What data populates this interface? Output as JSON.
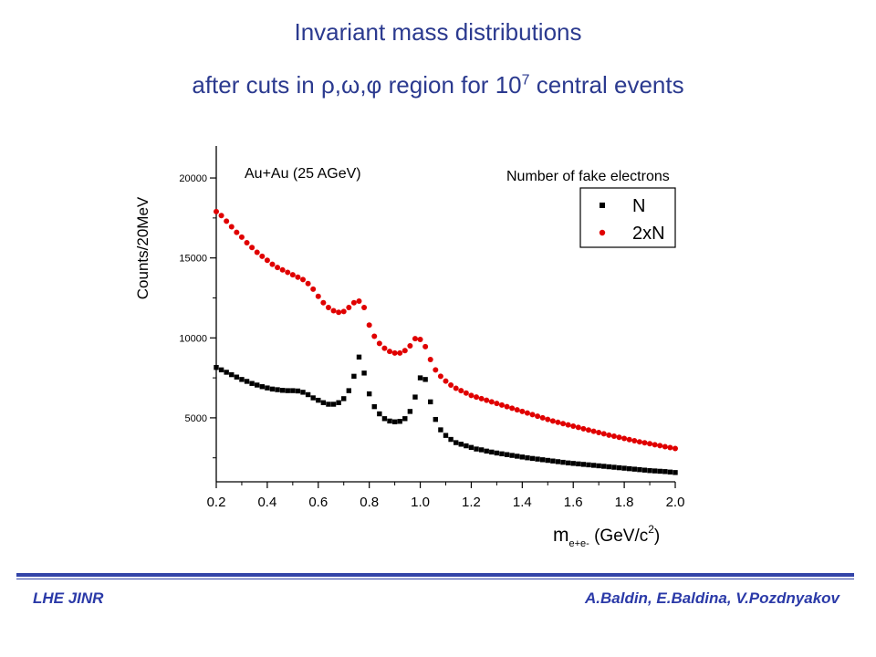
{
  "title": {
    "line1": "Invariant mass distributions",
    "line2_prefix": "after cuts in ",
    "line2_greek": "ρ,ω,φ",
    "line2_mid": " region for 10",
    "line2_sup": "7",
    "line2_suffix": " central events"
  },
  "footer": {
    "left": "LHE JINR",
    "right": "A.Baldin, E.Baldina, V.Pozdnyakov"
  },
  "colors": {
    "title": "#2b3a8f",
    "footer": "#2b3aa8",
    "series_N": "#000000",
    "series_2xN": "#e00000"
  },
  "chart_data": {
    "type": "scatter",
    "annotation": "Au+Au (25 AGeV)",
    "legend_title": "Number of fake electrons",
    "legend_placement": "top-right",
    "ylabel": "Counts/20MeV",
    "xlabel_main": "m",
    "xlabel_sub": "e+e-",
    "xlabel_unit_prefix": " (GeV/c",
    "xlabel_unit_sup": "2",
    "xlabel_unit_suffix": ")",
    "xlim": [
      0.2,
      2.0
    ],
    "ylim": [
      1000,
      22000
    ],
    "x_ticks": [
      0.2,
      0.4,
      0.6,
      0.8,
      1.0,
      1.2,
      1.4,
      1.6,
      1.8,
      2.0
    ],
    "x_tick_labels": [
      "0.2",
      "0.4",
      "0.6",
      "0.8",
      "1.0",
      "1.2",
      "1.4",
      "1.6",
      "1.8",
      "2.0"
    ],
    "y_ticks": [
      5000,
      10000,
      15000,
      20000
    ],
    "y_tick_labels": [
      "5000",
      "10000",
      "15000",
      "20000"
    ],
    "grid": false,
    "series": [
      {
        "name": "N",
        "marker": "square",
        "x": [
          0.2,
          0.22,
          0.24,
          0.26,
          0.28,
          0.3,
          0.32,
          0.34,
          0.36,
          0.38,
          0.4,
          0.42,
          0.44,
          0.46,
          0.48,
          0.5,
          0.52,
          0.54,
          0.56,
          0.58,
          0.6,
          0.62,
          0.64,
          0.66,
          0.68,
          0.7,
          0.72,
          0.74,
          0.76,
          0.78,
          0.8,
          0.82,
          0.84,
          0.86,
          0.88,
          0.9,
          0.92,
          0.94,
          0.96,
          0.98,
          1.0,
          1.02,
          1.04,
          1.06,
          1.08,
          1.1,
          1.12,
          1.14,
          1.16,
          1.18,
          1.2,
          1.22,
          1.24,
          1.26,
          1.28,
          1.3,
          1.32,
          1.34,
          1.36,
          1.38,
          1.4,
          1.42,
          1.44,
          1.46,
          1.48,
          1.5,
          1.52,
          1.54,
          1.56,
          1.58,
          1.6,
          1.62,
          1.64,
          1.66,
          1.68,
          1.7,
          1.72,
          1.74,
          1.76,
          1.78,
          1.8,
          1.82,
          1.84,
          1.86,
          1.88,
          1.9,
          1.92,
          1.94,
          1.96,
          1.98,
          2.0
        ],
        "y": [
          8150,
          8000,
          7850,
          7700,
          7550,
          7400,
          7280,
          7150,
          7050,
          6950,
          6870,
          6800,
          6760,
          6720,
          6700,
          6700,
          6680,
          6600,
          6450,
          6250,
          6100,
          5950,
          5850,
          5850,
          5950,
          6200,
          6700,
          7600,
          8800,
          7800,
          6500,
          5700,
          5250,
          4950,
          4800,
          4750,
          4780,
          4950,
          5400,
          6300,
          7500,
          7400,
          6000,
          4900,
          4250,
          3900,
          3650,
          3450,
          3350,
          3250,
          3150,
          3050,
          3000,
          2920,
          2860,
          2800,
          2750,
          2700,
          2650,
          2600,
          2550,
          2500,
          2460,
          2420,
          2380,
          2340,
          2300,
          2260,
          2220,
          2180,
          2150,
          2120,
          2090,
          2060,
          2030,
          2000,
          1970,
          1940,
          1910,
          1880,
          1850,
          1820,
          1790,
          1760,
          1730,
          1700,
          1680,
          1660,
          1640,
          1610,
          1580
        ]
      },
      {
        "name": "2xN",
        "marker": "circle",
        "x": [
          0.2,
          0.22,
          0.24,
          0.26,
          0.28,
          0.3,
          0.32,
          0.34,
          0.36,
          0.38,
          0.4,
          0.42,
          0.44,
          0.46,
          0.48,
          0.5,
          0.52,
          0.54,
          0.56,
          0.58,
          0.6,
          0.62,
          0.64,
          0.66,
          0.68,
          0.7,
          0.72,
          0.74,
          0.76,
          0.78,
          0.8,
          0.82,
          0.84,
          0.86,
          0.88,
          0.9,
          0.92,
          0.94,
          0.96,
          0.98,
          1.0,
          1.02,
          1.04,
          1.06,
          1.08,
          1.1,
          1.12,
          1.14,
          1.16,
          1.18,
          1.2,
          1.22,
          1.24,
          1.26,
          1.28,
          1.3,
          1.32,
          1.34,
          1.36,
          1.38,
          1.4,
          1.42,
          1.44,
          1.46,
          1.48,
          1.5,
          1.52,
          1.54,
          1.56,
          1.58,
          1.6,
          1.62,
          1.64,
          1.66,
          1.68,
          1.7,
          1.72,
          1.74,
          1.76,
          1.78,
          1.8,
          1.82,
          1.84,
          1.86,
          1.88,
          1.9,
          1.92,
          1.94,
          1.96,
          1.98,
          2.0
        ],
        "y": [
          17900,
          17650,
          17300,
          16950,
          16600,
          16300,
          15950,
          15650,
          15350,
          15100,
          14850,
          14600,
          14400,
          14250,
          14100,
          13950,
          13800,
          13650,
          13400,
          13050,
          12600,
          12200,
          11900,
          11700,
          11600,
          11650,
          11900,
          12200,
          12300,
          11900,
          10800,
          10100,
          9650,
          9350,
          9150,
          9050,
          9050,
          9200,
          9500,
          9950,
          9900,
          9450,
          8650,
          8000,
          7600,
          7300,
          7050,
          6850,
          6700,
          6550,
          6400,
          6300,
          6200,
          6100,
          6000,
          5900,
          5800,
          5700,
          5600,
          5500,
          5400,
          5300,
          5200,
          5100,
          5000,
          4900,
          4800,
          4720,
          4640,
          4560,
          4480,
          4400,
          4320,
          4240,
          4160,
          4080,
          4000,
          3920,
          3850,
          3780,
          3710,
          3640,
          3570,
          3500,
          3440,
          3380,
          3320,
          3260,
          3200,
          3140,
          3080
        ]
      }
    ]
  }
}
